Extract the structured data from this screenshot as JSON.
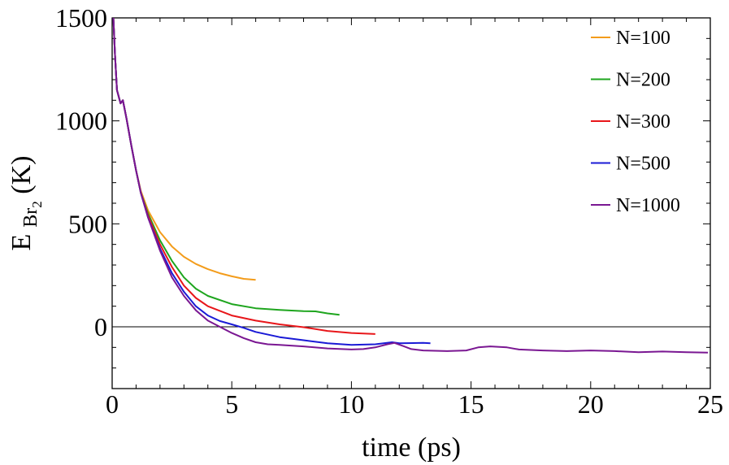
{
  "chart_data": {
    "type": "line",
    "xlabel": "time (ps)",
    "ylabel": {
      "base": "E",
      "sub": "Br",
      "subsub": "2",
      "unit": " (K)"
    },
    "xlim": [
      0,
      25
    ],
    "ylim": [
      -300,
      1500
    ],
    "xticks": [
      0,
      5,
      10,
      15,
      20,
      25
    ],
    "xtick_labels": [
      "0",
      "5",
      "10",
      "15",
      "20",
      "25"
    ],
    "yticks": [
      0,
      500,
      1000,
      1500
    ],
    "ytick_labels": [
      "0",
      "500",
      "1000",
      "1500"
    ],
    "reference_line_y": 0,
    "grid": false,
    "legend_position": "top-right",
    "series": [
      {
        "name": "N=100",
        "color": "#F39C1B",
        "points": [
          [
            0.05,
            1500
          ],
          [
            0.12,
            1320
          ],
          [
            0.2,
            1150
          ],
          [
            0.35,
            1085
          ],
          [
            0.45,
            1100
          ],
          [
            0.6,
            1010
          ],
          [
            0.8,
            880
          ],
          [
            1.0,
            760
          ],
          [
            1.2,
            660
          ],
          [
            1.5,
            565
          ],
          [
            2.0,
            460
          ],
          [
            2.5,
            390
          ],
          [
            3.0,
            340
          ],
          [
            3.5,
            305
          ],
          [
            4.0,
            280
          ],
          [
            4.5,
            260
          ],
          [
            5.0,
            245
          ],
          [
            5.5,
            233
          ],
          [
            6.0,
            228
          ]
        ]
      },
      {
        "name": "N=200",
        "color": "#1EA51E",
        "points": [
          [
            0.05,
            1500
          ],
          [
            0.12,
            1320
          ],
          [
            0.2,
            1150
          ],
          [
            0.35,
            1085
          ],
          [
            0.45,
            1100
          ],
          [
            0.6,
            1010
          ],
          [
            0.8,
            880
          ],
          [
            1.0,
            760
          ],
          [
            1.2,
            650
          ],
          [
            1.5,
            550
          ],
          [
            2.0,
            420
          ],
          [
            2.5,
            320
          ],
          [
            3.0,
            240
          ],
          [
            3.5,
            185
          ],
          [
            4.0,
            150
          ],
          [
            5.0,
            110
          ],
          [
            6.0,
            90
          ],
          [
            7.0,
            82
          ],
          [
            8.0,
            76
          ],
          [
            8.5,
            75
          ],
          [
            9.0,
            65
          ],
          [
            9.5,
            58
          ]
        ]
      },
      {
        "name": "N=300",
        "color": "#E8161A",
        "points": [
          [
            0.05,
            1500
          ],
          [
            0.12,
            1320
          ],
          [
            0.2,
            1150
          ],
          [
            0.35,
            1085
          ],
          [
            0.45,
            1100
          ],
          [
            0.6,
            1010
          ],
          [
            0.8,
            880
          ],
          [
            1.0,
            760
          ],
          [
            1.2,
            650
          ],
          [
            1.5,
            540
          ],
          [
            2.0,
            400
          ],
          [
            2.5,
            290
          ],
          [
            3.0,
            200
          ],
          [
            3.5,
            140
          ],
          [
            4.0,
            100
          ],
          [
            5.0,
            55
          ],
          [
            6.0,
            30
          ],
          [
            7.0,
            12
          ],
          [
            8.0,
            -2
          ],
          [
            9.0,
            -20
          ],
          [
            10.0,
            -30
          ],
          [
            11.0,
            -35
          ]
        ]
      },
      {
        "name": "N=500",
        "color": "#1A1AD6",
        "points": [
          [
            0.05,
            1500
          ],
          [
            0.12,
            1320
          ],
          [
            0.2,
            1150
          ],
          [
            0.35,
            1085
          ],
          [
            0.45,
            1100
          ],
          [
            0.6,
            1010
          ],
          [
            0.8,
            880
          ],
          [
            1.0,
            760
          ],
          [
            1.2,
            650
          ],
          [
            1.5,
            530
          ],
          [
            2.0,
            380
          ],
          [
            2.5,
            260
          ],
          [
            3.0,
            170
          ],
          [
            3.5,
            100
          ],
          [
            4.0,
            55
          ],
          [
            4.5,
            28
          ],
          [
            5.0,
            12
          ],
          [
            5.5,
            -5
          ],
          [
            6.0,
            -25
          ],
          [
            7.0,
            -50
          ],
          [
            8.0,
            -65
          ],
          [
            9.0,
            -80
          ],
          [
            10.0,
            -88
          ],
          [
            11.0,
            -85
          ],
          [
            11.7,
            -75
          ],
          [
            12.0,
            -80
          ],
          [
            13.0,
            -78
          ],
          [
            13.3,
            -80
          ]
        ]
      },
      {
        "name": "N=1000",
        "color": "#7A1792",
        "points": [
          [
            0.05,
            1500
          ],
          [
            0.12,
            1320
          ],
          [
            0.2,
            1150
          ],
          [
            0.35,
            1085
          ],
          [
            0.45,
            1100
          ],
          [
            0.6,
            1010
          ],
          [
            0.8,
            880
          ],
          [
            1.0,
            760
          ],
          [
            1.2,
            650
          ],
          [
            1.5,
            530
          ],
          [
            2.0,
            370
          ],
          [
            2.5,
            240
          ],
          [
            3.0,
            150
          ],
          [
            3.5,
            80
          ],
          [
            4.0,
            30
          ],
          [
            4.5,
            0
          ],
          [
            5.0,
            -30
          ],
          [
            5.5,
            -55
          ],
          [
            6.0,
            -75
          ],
          [
            6.5,
            -85
          ],
          [
            7.0,
            -88
          ],
          [
            8.0,
            -95
          ],
          [
            9.0,
            -105
          ],
          [
            10.0,
            -110
          ],
          [
            10.5,
            -108
          ],
          [
            11.0,
            -100
          ],
          [
            11.5,
            -85
          ],
          [
            11.8,
            -78
          ],
          [
            12.2,
            -95
          ],
          [
            12.5,
            -108
          ],
          [
            13.0,
            -115
          ],
          [
            14.0,
            -118
          ],
          [
            14.8,
            -115
          ],
          [
            15.3,
            -100
          ],
          [
            15.8,
            -95
          ],
          [
            16.5,
            -100
          ],
          [
            17.0,
            -110
          ],
          [
            18.0,
            -115
          ],
          [
            19.0,
            -118
          ],
          [
            20.0,
            -115
          ],
          [
            21.0,
            -118
          ],
          [
            22.0,
            -123
          ],
          [
            23.0,
            -120
          ],
          [
            24.0,
            -123
          ],
          [
            24.9,
            -125
          ]
        ]
      }
    ]
  }
}
